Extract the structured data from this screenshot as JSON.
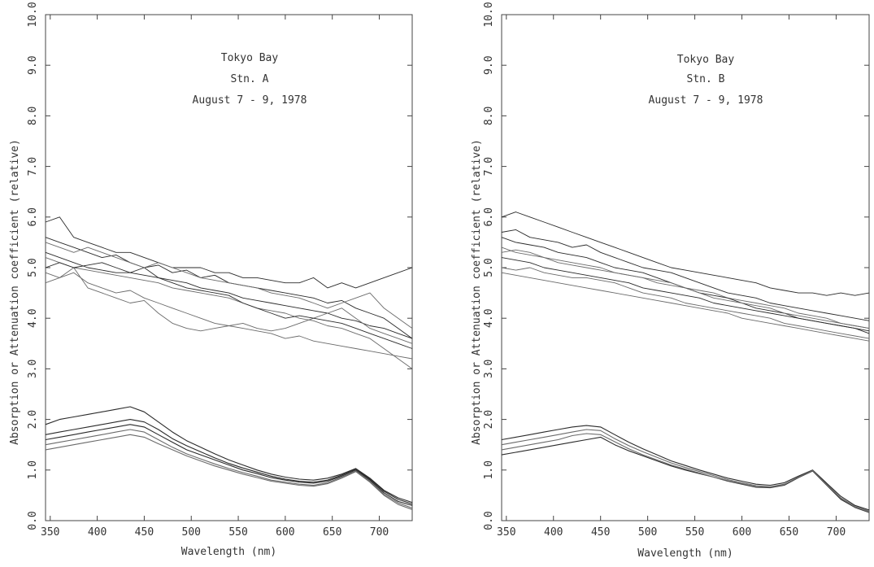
{
  "chart_data": [
    {
      "type": "line",
      "annotation": [
        "Tokyo Bay",
        "Stn. A",
        "August 7 - 9, 1978"
      ],
      "xlabel": "Wavelength (nm)",
      "ylabel": "Absorption or Attenuation coefficient (relative)",
      "xlim": [
        345,
        735
      ],
      "ylim": [
        0,
        10
      ],
      "xticks": [
        350,
        400,
        450,
        500,
        550,
        600,
        650,
        700
      ],
      "yticks": [
        "0.0",
        "1.0",
        "2.0",
        "3.0",
        "4.0",
        "5.0",
        "6.0",
        "7.0",
        "8.0",
        "9.0",
        "10.0"
      ],
      "grid": false,
      "colors": {
        "line": "#2a2a2a",
        "axis": "#444444"
      },
      "x": [
        345,
        360,
        375,
        390,
        405,
        420,
        435,
        450,
        465,
        480,
        495,
        510,
        525,
        540,
        555,
        570,
        585,
        600,
        615,
        630,
        645,
        660,
        675,
        690,
        705,
        720,
        735
      ],
      "attenuation_series": [
        {
          "values": [
            5.6,
            5.5,
            5.4,
            5.3,
            5.2,
            5.25,
            5.1,
            5.0,
            5.05,
            4.9,
            4.95,
            4.8,
            4.85,
            4.7,
            4.65,
            4.6,
            4.55,
            4.5,
            4.45,
            4.4,
            4.3,
            4.35,
            4.2,
            4.1,
            4.0,
            3.8,
            3.6
          ]
        },
        {
          "values": [
            5.2,
            5.1,
            5.0,
            4.95,
            4.9,
            4.85,
            4.8,
            4.75,
            4.7,
            4.6,
            4.55,
            4.5,
            4.45,
            4.4,
            4.3,
            4.2,
            4.15,
            4.1,
            4.0,
            3.95,
            3.85,
            3.8,
            3.7,
            3.6,
            3.4,
            3.2,
            3.0
          ]
        },
        {
          "values": [
            5.9,
            6.0,
            5.6,
            5.5,
            5.4,
            5.3,
            5.3,
            5.2,
            5.1,
            5.0,
            5.0,
            5.0,
            4.9,
            4.9,
            4.8,
            4.8,
            4.75,
            4.7,
            4.7,
            4.8,
            4.6,
            4.7,
            4.6,
            4.7,
            4.8,
            4.9,
            5.0
          ]
        },
        {
          "values": [
            4.9,
            4.8,
            4.9,
            4.7,
            4.6,
            4.5,
            4.55,
            4.4,
            4.3,
            4.2,
            4.1,
            4.0,
            3.9,
            3.85,
            3.8,
            3.75,
            3.7,
            3.6,
            3.65,
            3.55,
            3.5,
            3.45,
            3.4,
            3.35,
            3.3,
            3.25,
            3.2
          ]
        },
        {
          "values": [
            5.3,
            5.2,
            5.1,
            5.0,
            4.95,
            4.9,
            4.9,
            4.85,
            4.8,
            4.75,
            4.7,
            4.6,
            4.55,
            4.5,
            4.4,
            4.35,
            4.3,
            4.25,
            4.2,
            4.15,
            4.1,
            4.0,
            3.95,
            3.85,
            3.8,
            3.7,
            3.6
          ]
        },
        {
          "values": [
            4.7,
            4.8,
            5.0,
            4.6,
            4.5,
            4.4,
            4.3,
            4.35,
            4.1,
            3.9,
            3.8,
            3.75,
            3.8,
            3.85,
            3.9,
            3.8,
            3.75,
            3.8,
            3.9,
            4.0,
            4.1,
            4.2,
            4.0,
            3.8,
            3.7,
            3.6,
            3.5
          ]
        },
        {
          "values": [
            5.0,
            5.1,
            5.0,
            5.05,
            5.1,
            5.0,
            4.9,
            5.0,
            4.8,
            4.7,
            4.6,
            4.55,
            4.5,
            4.45,
            4.3,
            4.2,
            4.1,
            4.0,
            4.05,
            4.0,
            3.95,
            3.9,
            3.8,
            3.7,
            3.6,
            3.5,
            3.4
          ]
        },
        {
          "values": [
            5.5,
            5.4,
            5.3,
            5.4,
            5.3,
            5.2,
            5.1,
            5.0,
            5.1,
            5.0,
            4.9,
            4.8,
            4.75,
            4.7,
            4.65,
            4.6,
            4.5,
            4.45,
            4.4,
            4.3,
            4.2,
            4.3,
            4.4,
            4.5,
            4.2,
            4.0,
            3.8
          ]
        }
      ],
      "absorption_series": [
        {
          "values": [
            1.6,
            1.65,
            1.7,
            1.75,
            1.8,
            1.85,
            1.9,
            1.85,
            1.7,
            1.55,
            1.4,
            1.3,
            1.2,
            1.1,
            1.0,
            0.93,
            0.85,
            0.8,
            0.76,
            0.74,
            0.78,
            0.88,
            1.0,
            0.8,
            0.55,
            0.38,
            0.3
          ]
        },
        {
          "values": [
            1.5,
            1.55,
            1.6,
            1.65,
            1.7,
            1.75,
            1.8,
            1.75,
            1.6,
            1.45,
            1.32,
            1.22,
            1.12,
            1.03,
            0.95,
            0.88,
            0.8,
            0.76,
            0.72,
            0.7,
            0.75,
            0.86,
            0.98,
            0.78,
            0.52,
            0.35,
            0.25
          ]
        },
        {
          "values": [
            1.7,
            1.75,
            1.8,
            1.85,
            1.9,
            1.95,
            2.0,
            1.95,
            1.8,
            1.62,
            1.48,
            1.36,
            1.24,
            1.13,
            1.04,
            0.96,
            0.88,
            0.82,
            0.78,
            0.76,
            0.8,
            0.9,
            1.02,
            0.82,
            0.58,
            0.42,
            0.33
          ]
        },
        {
          "values": [
            1.4,
            1.45,
            1.5,
            1.55,
            1.6,
            1.65,
            1.7,
            1.65,
            1.52,
            1.4,
            1.28,
            1.18,
            1.08,
            1.0,
            0.92,
            0.85,
            0.78,
            0.74,
            0.7,
            0.68,
            0.73,
            0.84,
            0.97,
            0.76,
            0.5,
            0.32,
            0.22
          ]
        },
        {
          "values": [
            1.9,
            2.0,
            2.05,
            2.1,
            2.15,
            2.2,
            2.25,
            2.15,
            1.95,
            1.75,
            1.58,
            1.45,
            1.32,
            1.2,
            1.1,
            1.0,
            0.92,
            0.86,
            0.82,
            0.8,
            0.84,
            0.92,
            1.03,
            0.84,
            0.6,
            0.45,
            0.36
          ]
        }
      ]
    },
    {
      "type": "line",
      "annotation": [
        "Tokyo Bay",
        "Stn. B",
        "August 7 - 9, 1978"
      ],
      "xlabel": "Wavelength (nm)",
      "ylabel": "Absorption or Attenuation coefficient (relative)",
      "xlim": [
        345,
        735
      ],
      "ylim": [
        0,
        10
      ],
      "xticks": [
        350,
        400,
        450,
        500,
        550,
        600,
        650,
        700
      ],
      "yticks": [
        "0.0",
        "1.0",
        "2.0",
        "3.0",
        "4.0",
        "5.0",
        "6.0",
        "7.0",
        "8.0",
        "9.0",
        "10.0"
      ],
      "grid": false,
      "colors": {
        "line": "#2a2a2a",
        "axis": "#444444"
      },
      "x": [
        345,
        360,
        375,
        390,
        405,
        420,
        435,
        450,
        465,
        480,
        495,
        510,
        525,
        540,
        555,
        570,
        585,
        600,
        615,
        630,
        645,
        660,
        675,
        690,
        705,
        720,
        735
      ],
      "attenuation_series": [
        {
          "values": [
            5.7,
            5.75,
            5.6,
            5.55,
            5.5,
            5.4,
            5.45,
            5.3,
            5.2,
            5.1,
            5.0,
            4.95,
            4.9,
            4.8,
            4.7,
            4.6,
            4.5,
            4.45,
            4.4,
            4.3,
            4.25,
            4.2,
            4.15,
            4.1,
            4.05,
            4.0,
            3.95
          ]
        },
        {
          "values": [
            5.4,
            5.3,
            5.25,
            5.2,
            5.1,
            5.05,
            5.0,
            4.95,
            4.9,
            4.85,
            4.8,
            4.7,
            4.65,
            4.6,
            4.55,
            4.5,
            4.4,
            4.35,
            4.3,
            4.25,
            4.2,
            4.1,
            4.05,
            4.0,
            3.9,
            3.85,
            3.8
          ]
        },
        {
          "values": [
            6.0,
            6.1,
            6.0,
            5.9,
            5.8,
            5.7,
            5.6,
            5.5,
            5.4,
            5.3,
            5.2,
            5.1,
            5.0,
            4.95,
            4.9,
            4.85,
            4.8,
            4.75,
            4.7,
            4.6,
            4.55,
            4.5,
            4.5,
            4.45,
            4.5,
            4.45,
            4.5
          ]
        },
        {
          "values": [
            4.9,
            4.85,
            4.8,
            4.75,
            4.7,
            4.65,
            4.6,
            4.55,
            4.5,
            4.45,
            4.4,
            4.35,
            4.3,
            4.25,
            4.2,
            4.15,
            4.1,
            4.0,
            3.95,
            3.9,
            3.85,
            3.8,
            3.75,
            3.7,
            3.65,
            3.6,
            3.55
          ]
        },
        {
          "values": [
            5.2,
            5.15,
            5.1,
            5.0,
            4.95,
            4.9,
            4.85,
            4.8,
            4.75,
            4.7,
            4.6,
            4.55,
            4.5,
            4.45,
            4.4,
            4.3,
            4.25,
            4.2,
            4.15,
            4.1,
            4.05,
            4.0,
            3.95,
            3.9,
            3.85,
            3.8,
            3.75
          ]
        },
        {
          "values": [
            5.0,
            4.95,
            5.0,
            4.9,
            4.85,
            4.8,
            4.8,
            4.75,
            4.7,
            4.6,
            4.5,
            4.45,
            4.4,
            4.3,
            4.25,
            4.2,
            4.15,
            4.1,
            4.05,
            4.0,
            3.9,
            3.85,
            3.8,
            3.75,
            3.7,
            3.65,
            3.6
          ]
        },
        {
          "values": [
            5.6,
            5.5,
            5.45,
            5.4,
            5.3,
            5.25,
            5.2,
            5.1,
            5.0,
            4.95,
            4.9,
            4.8,
            4.7,
            4.6,
            4.5,
            4.45,
            4.4,
            4.3,
            4.2,
            4.15,
            4.1,
            4.0,
            3.95,
            3.9,
            3.85,
            3.8,
            3.7
          ]
        },
        {
          "values": [
            5.3,
            5.35,
            5.3,
            5.2,
            5.15,
            5.1,
            5.05,
            5.0,
            4.9,
            4.85,
            4.8,
            4.75,
            4.7,
            4.6,
            4.5,
            4.4,
            4.35,
            4.3,
            4.25,
            4.2,
            4.1,
            4.05,
            4.0,
            3.95,
            3.9,
            3.85,
            3.8
          ]
        }
      ],
      "absorption_series": [
        {
          "values": [
            1.3,
            1.35,
            1.4,
            1.45,
            1.5,
            1.55,
            1.6,
            1.65,
            1.5,
            1.38,
            1.28,
            1.18,
            1.08,
            1.0,
            0.93,
            0.86,
            0.78,
            0.72,
            0.66,
            0.65,
            0.7,
            0.85,
            0.98,
            0.7,
            0.42,
            0.26,
            0.16
          ]
        },
        {
          "values": [
            1.5,
            1.55,
            1.6,
            1.65,
            1.7,
            1.75,
            1.8,
            1.78,
            1.62,
            1.48,
            1.36,
            1.25,
            1.14,
            1.05,
            0.97,
            0.89,
            0.81,
            0.75,
            0.69,
            0.67,
            0.72,
            0.86,
            0.99,
            0.72,
            0.45,
            0.28,
            0.19
          ]
        },
        {
          "values": [
            1.6,
            1.65,
            1.7,
            1.75,
            1.8,
            1.85,
            1.88,
            1.85,
            1.7,
            1.55,
            1.42,
            1.3,
            1.18,
            1.09,
            1.0,
            0.92,
            0.84,
            0.78,
            0.72,
            0.7,
            0.75,
            0.88,
            1.0,
            0.74,
            0.48,
            0.3,
            0.21
          ]
        },
        {
          "values": [
            1.4,
            1.45,
            1.5,
            1.55,
            1.6,
            1.68,
            1.72,
            1.7,
            1.56,
            1.42,
            1.3,
            1.2,
            1.1,
            1.02,
            0.94,
            0.86,
            0.79,
            0.73,
            0.67,
            0.66,
            0.71,
            0.86,
            0.99,
            0.71,
            0.44,
            0.27,
            0.17
          ]
        }
      ]
    }
  ]
}
